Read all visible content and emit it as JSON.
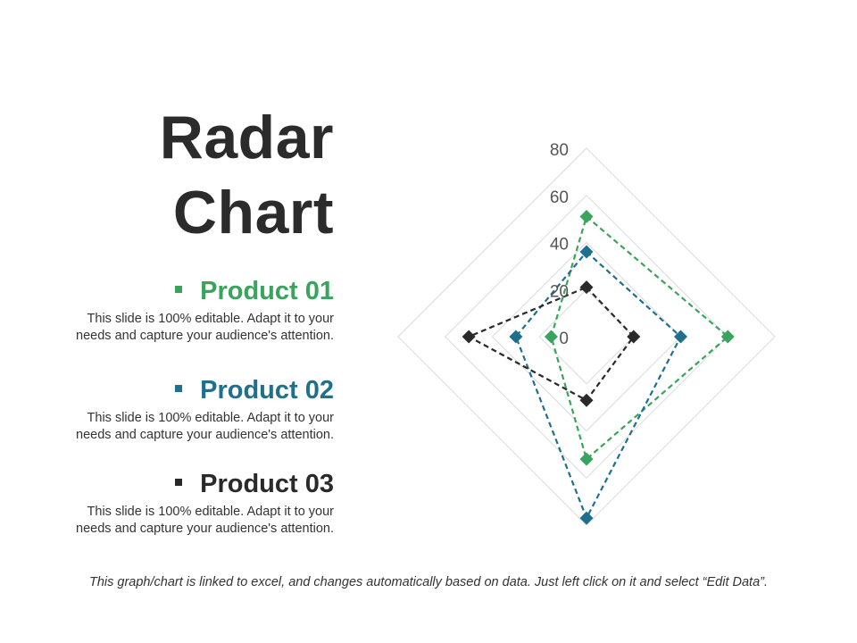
{
  "title": {
    "line1": "Radar",
    "line2": "Chart"
  },
  "products": [
    {
      "name": "Product 01",
      "color": "#3aa35d",
      "desc1": "This slide is 100% editable. Adapt it to your",
      "desc2": "needs and capture your audience's attention."
    },
    {
      "name": "Product 02",
      "color": "#1f6f8f",
      "desc1": "This slide is 100% editable. Adapt it to your",
      "desc2": "needs and capture your audience's attention."
    },
    {
      "name": "Product 03",
      "color": "#2a2a2a",
      "desc1": "This slide is 100% editable. Adapt it to your",
      "desc2": "needs and capture your audience's attention."
    }
  ],
  "footer": "This graph/chart is linked to excel, and changes automatically based on data. Just left click on it and select “Edit Data”.",
  "chart_data": {
    "type": "radar",
    "axes_count": 4,
    "rlim": [
      0,
      80
    ],
    "ticks": [
      0,
      20,
      40,
      60,
      80
    ],
    "tick_labels": [
      "0",
      "20",
      "40",
      "60",
      "80"
    ],
    "grid": true,
    "line_style": "dashed",
    "marker": "diamond",
    "series": [
      {
        "name": "Product 01",
        "color": "#3aa35d",
        "values": [
          51,
          60,
          52,
          15
        ]
      },
      {
        "name": "Product 02",
        "color": "#1f6f8f",
        "values": [
          36,
          40,
          77,
          30
        ]
      },
      {
        "name": "Product 03",
        "color": "#2a2a2a",
        "values": [
          21,
          20,
          27,
          50
        ]
      }
    ]
  }
}
